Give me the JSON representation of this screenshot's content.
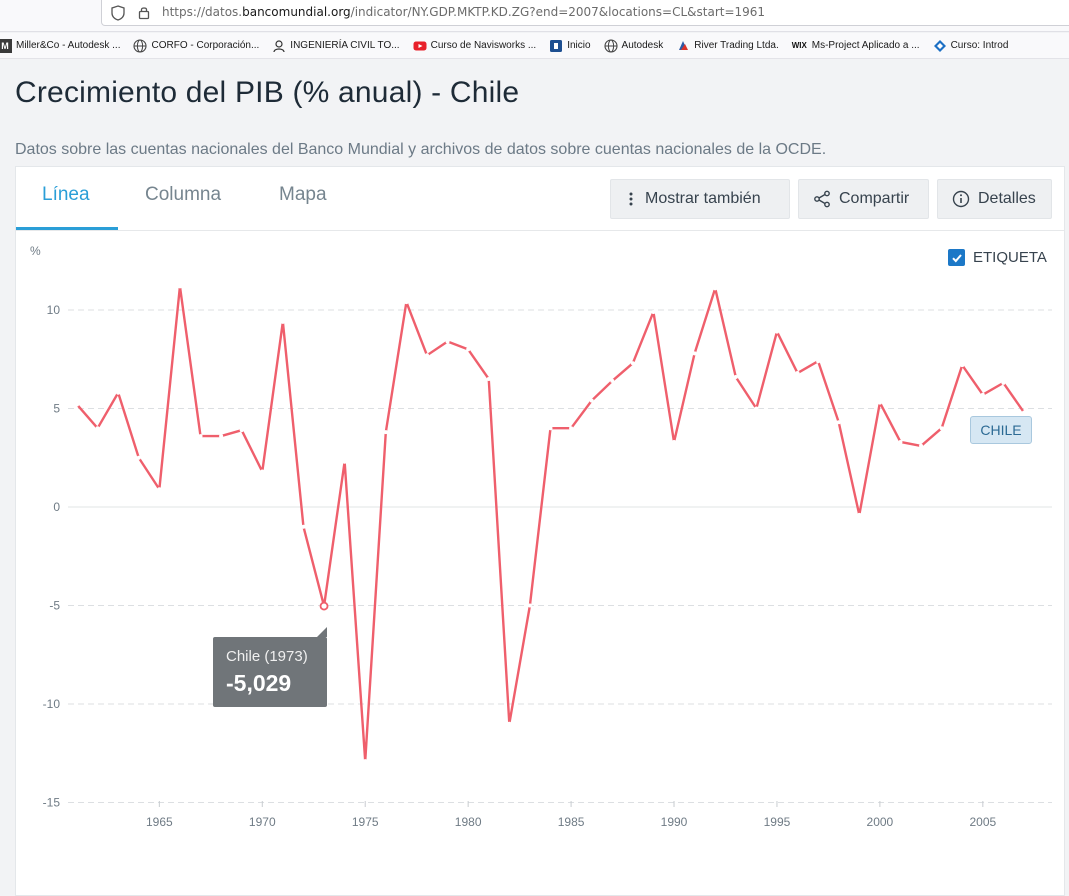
{
  "browser": {
    "url_prefix": "https://datos.",
    "url_domain": "bancomundial.org",
    "url_suffix": "/indicator/NY.GDP.MKTP.KD.ZG?end=2007&locations=CL&start=1961",
    "bookmarks": [
      {
        "label": "Miller&Co - Autodesk ...",
        "icon": "autodesk-m-icon"
      },
      {
        "label": "CORFO - Corporación...",
        "icon": "globe-icon"
      },
      {
        "label": "INGENIERÍA CIVIL TO...",
        "icon": "engineer-icon"
      },
      {
        "label": "Curso de Navisworks ...",
        "icon": "youtube-icon"
      },
      {
        "label": "Inicio",
        "icon": "inicio-icon"
      },
      {
        "label": "Autodesk",
        "icon": "globe-icon"
      },
      {
        "label": "River Trading Ltda.",
        "icon": "river-icon"
      },
      {
        "label": "Ms-Project Aplicado a ...",
        "icon": "wix-icon"
      },
      {
        "label": "Curso: Introd",
        "icon": "diamond-icon"
      }
    ]
  },
  "page": {
    "title": "Crecimiento del PIB (% anual) - Chile",
    "subtitle": "Datos sobre las cuentas nacionales del Banco Mundial y archivos de datos sobre cuentas nacionales de la OCDE."
  },
  "tabs": [
    {
      "label": "Línea",
      "active": true
    },
    {
      "label": "Columna",
      "active": false
    },
    {
      "label": "Mapa",
      "active": false
    }
  ],
  "buttons": {
    "show_also": "Mostrar también",
    "share": "Compartir",
    "details": "Detalles"
  },
  "label_toggle": {
    "label": "ETIQUETA",
    "checked": true
  },
  "tooltip": {
    "title": "Chile (1973)",
    "value": "-5,029"
  },
  "series_tag": "CHILE",
  "colors": {
    "line": "#ef5f6c",
    "accent": "#2a9ed7",
    "checkbox": "#1c78c7"
  },
  "chart_data": {
    "type": "line",
    "ylabel": "%",
    "ylim": [
      -15,
      12
    ],
    "xlim": [
      1961,
      2007
    ],
    "yticks": [
      -15,
      -10,
      -5,
      0,
      5,
      10
    ],
    "xticks": [
      1965,
      1970,
      1975,
      1980,
      1985,
      1990,
      1995,
      2000,
      2005
    ],
    "grid": true,
    "series": [
      {
        "name": "CHILE",
        "x": [
          1961,
          1962,
          1963,
          1964,
          1965,
          1966,
          1967,
          1968,
          1969,
          1970,
          1971,
          1972,
          1973,
          1974,
          1975,
          1976,
          1977,
          1978,
          1979,
          1980,
          1981,
          1982,
          1983,
          1984,
          1985,
          1986,
          1987,
          1988,
          1989,
          1990,
          1991,
          1992,
          1993,
          1994,
          1995,
          1996,
          1997,
          1998,
          1999,
          2000,
          2001,
          2002,
          2003,
          2004,
          2005,
          2006,
          2007
        ],
        "values": [
          5.2,
          4.0,
          5.8,
          2.5,
          0.9,
          11.2,
          3.6,
          3.6,
          3.9,
          1.8,
          9.4,
          -1.0,
          -5.029,
          2.3,
          -12.9,
          3.8,
          10.4,
          7.7,
          8.4,
          8.0,
          6.5,
          -11.0,
          -5.0,
          4.0,
          4.0,
          5.4,
          6.4,
          7.3,
          9.9,
          3.3,
          7.8,
          11.1,
          6.6,
          5.0,
          8.9,
          6.8,
          7.4,
          4.3,
          -0.4,
          5.3,
          3.3,
          3.1,
          4.0,
          7.2,
          5.7,
          6.3,
          4.8
        ]
      }
    ]
  }
}
